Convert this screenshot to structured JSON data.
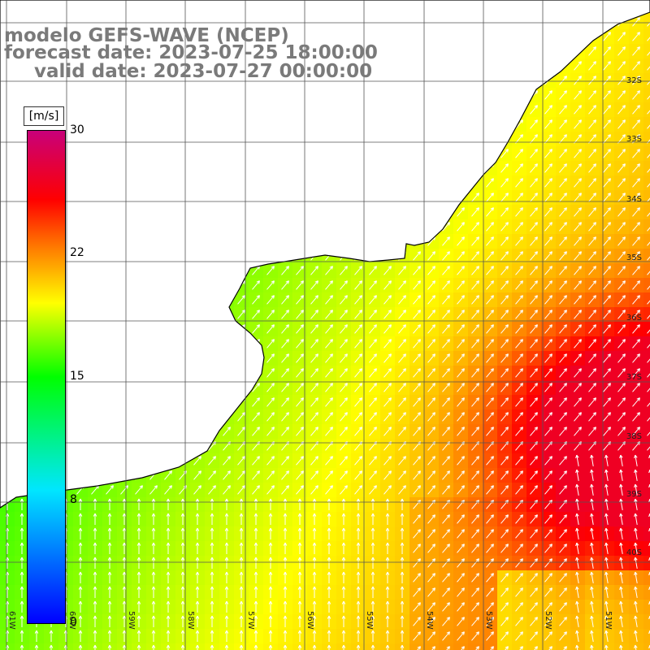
{
  "title": {
    "line1": "modelo GEFS-WAVE (NCEP)",
    "line2": "forecast date: 2023-07-25 18:00:00",
    "line3": "valid date: 2023-07-27 00:00:00"
  },
  "colorbar": {
    "unit": "[m/s]",
    "ticks": [
      "30",
      "22",
      "15",
      "8",
      "0"
    ],
    "colors": [
      "#0000ff",
      "#00e6ff",
      "#00ff00",
      "#ffff00",
      "#ff6600",
      "#ff0000",
      "#c8007a"
    ]
  },
  "map": {
    "latitude_labels": [
      "32S",
      "33S",
      "34S",
      "35S",
      "36S",
      "37S",
      "38S",
      "39S",
      "40S"
    ],
    "longitude_labels": [
      "61W",
      "60W",
      "59W",
      "58W",
      "57W",
      "56W",
      "55W",
      "54W",
      "53W",
      "52W",
      "51W"
    ],
    "land_color": "#ffffff",
    "coastline_color": "#000000",
    "grid_color": "#555555",
    "arrow_color": "#ffffff",
    "variable": "wind speed and direction"
  }
}
